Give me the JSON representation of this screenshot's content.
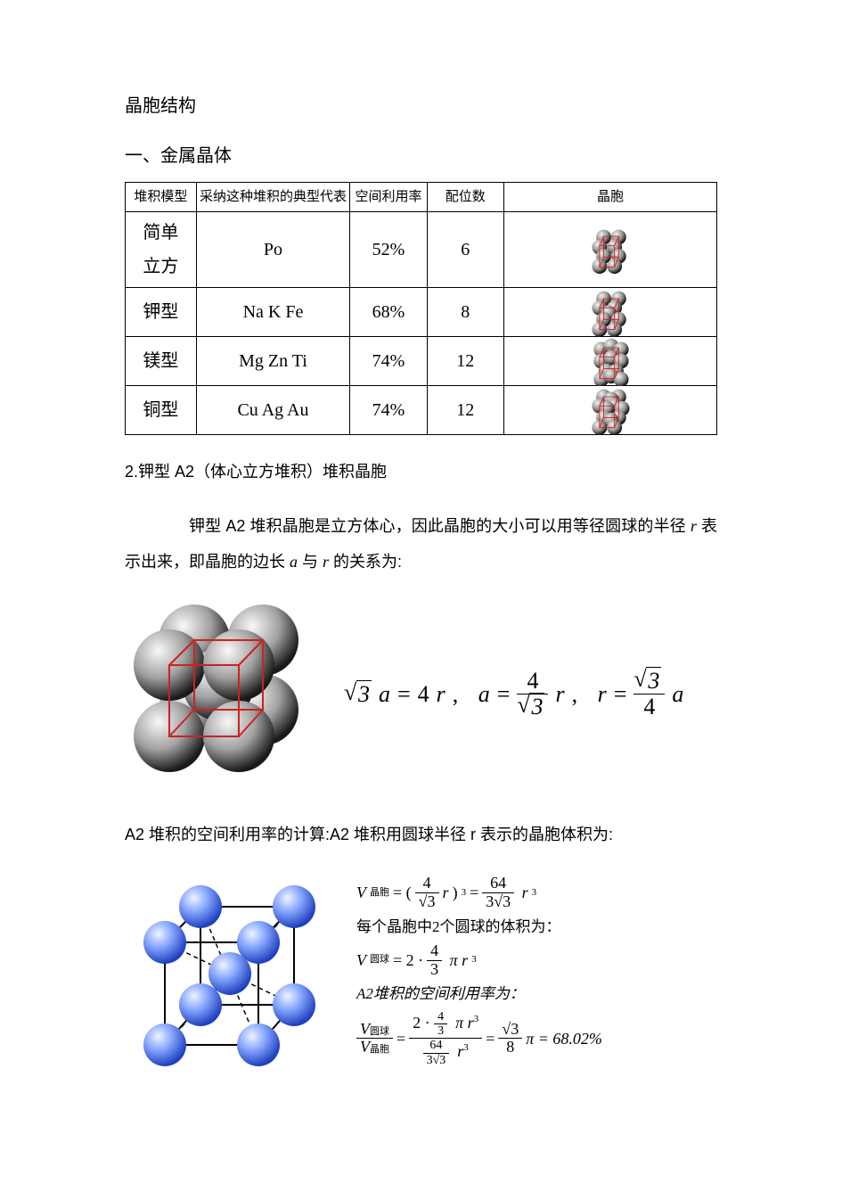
{
  "title": "晶胞结构",
  "section1": "一、金属晶体",
  "table": {
    "headers": [
      "堆积模型",
      "采纳这种堆积的典型代表",
      "空间利用率",
      "配位数",
      "晶胞"
    ],
    "col_widths": [
      "12%",
      "26%",
      "13%",
      "13%",
      "36%"
    ],
    "rows": [
      {
        "model": "简单立方",
        "examples": "Po",
        "efficiency": "52%",
        "coord": "6",
        "cell_svg": "sc"
      },
      {
        "model": "钾型",
        "examples": "Na K Fe",
        "efficiency": "68%",
        "coord": "8",
        "cell_svg": "bcc"
      },
      {
        "model": "镁型",
        "examples": "Mg Zn Ti",
        "efficiency": "74%",
        "coord": "12",
        "cell_svg": "hcp"
      },
      {
        "model": "铜型",
        "examples": "Cu Ag Au",
        "efficiency": "74%",
        "coord": "12",
        "cell_svg": "fcc"
      }
    ]
  },
  "subheading": "2.钾型 A2（体心立方堆积）堆积晶胞",
  "para1_prefix": "钾型 A2 堆积晶胞是立方体心，因此晶胞的大小可以用等径圆球的半径 ",
  "para1_r": "r",
  "para1_mid": " 表示出来，即晶胞的边长 ",
  "para1_a": "a",
  "para1_mid2": " 与 ",
  "para1_r2": "r",
  "para1_suffix": " 的关系为:",
  "formula_main": {
    "part1": "√3 a = 4r,",
    "part2_lhs": "a =",
    "part2_num": "4",
    "part2_den": "√3",
    "part2_rhs": "r,",
    "part3_lhs": "r =",
    "part3_num": "√3",
    "part3_den": "4",
    "part3_rhs": "a"
  },
  "para2": "A2 堆积的空间利用率的计算:A2 堆积用圆球半径 r 表示的晶胞体积为:",
  "calc": {
    "line1_label": "V",
    "line1_sub": "晶胞",
    "line1_a": " = (",
    "line1_num1": "4",
    "line1_den1": "√3",
    "line1_b": "r)",
    "line1_exp": "3",
    "line1_eq": " = ",
    "line1_num2": "64",
    "line1_den2": "3√3",
    "line1_c": " r",
    "line1_exp2": "3",
    "line2": "每个晶胞中2个圆球的体积为：",
    "line3_label": "V",
    "line3_sub": "圆球",
    "line3_a": " = 2 · ",
    "line3_num": "4",
    "line3_den": "3",
    "line3_b": " π r",
    "line3_exp": "3",
    "line4": "A2堆积的空间利用率为：",
    "line5_numlabel": "V",
    "line5_numsub": "圆球",
    "line5_denlabel": "V",
    "line5_densub": "晶胞",
    "line5_a": " = ",
    "line5_top_a": "2 · ",
    "line5_top_num": "4",
    "line5_top_den": "3",
    "line5_top_b": " π r",
    "line5_top_exp": "3",
    "line5_bot_num": "64",
    "line5_bot_den": "3√3",
    "line5_bot_b": " r",
    "line5_bot_exp": "3",
    "line5_mid": " = ",
    "line5_res_num": "√3",
    "line5_res_den": "8",
    "line5_res_pi": " π = 68.02%"
  },
  "colors": {
    "text": "#000000",
    "table_border": "#000000",
    "sphere_grey_light": "#e8e8e8",
    "sphere_grey_dark": "#2a2a2a",
    "sphere_blue_light": "#c8d8ff",
    "sphere_blue_mid": "#6a8aff",
    "sphere_blue_dark": "#2040c0",
    "cube_red": "#d02020",
    "cube_black": "#000000"
  }
}
